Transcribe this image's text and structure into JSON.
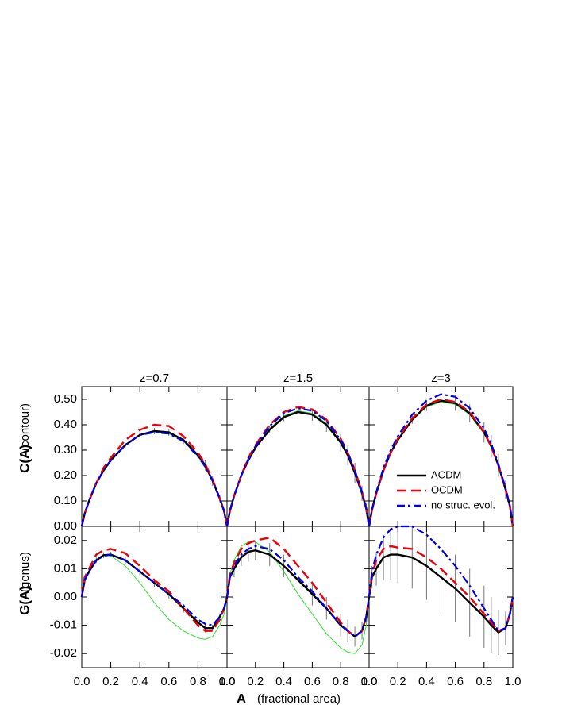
{
  "axis_labels": {
    "x": "A",
    "x_note": "(fractional area)",
    "y_top": "C(A)",
    "y_top_note": "(contour)",
    "y_bottom": "G(A)",
    "y_bottom_note": "(genus)"
  },
  "chart_data": [
    {
      "type": "line",
      "title": "z=0.7",
      "xlim": [
        0,
        1
      ],
      "ylim": [
        0,
        0.55
      ],
      "yticks": [
        {
          "value": 0,
          "label": "0.00"
        },
        {
          "value": 0.1,
          "label": "0.10"
        },
        {
          "value": 0.2,
          "label": "0.20"
        },
        {
          "value": 0.3,
          "label": "0.30"
        },
        {
          "value": 0.4,
          "label": "0.40"
        },
        {
          "value": 0.5,
          "label": "0.50"
        }
      ],
      "x": [
        0,
        0.02,
        0.05,
        0.1,
        0.15,
        0.2,
        0.3,
        0.4,
        0.5,
        0.6,
        0.7,
        0.8,
        0.85,
        0.9,
        0.95,
        0.98,
        1.0
      ],
      "series": [
        {
          "color": "#33dd33",
          "style": "thin",
          "values": [
            0,
            0.05,
            0.1,
            0.17,
            0.22,
            0.26,
            0.32,
            0.36,
            0.372,
            0.365,
            0.335,
            0.275,
            0.235,
            0.18,
            0.11,
            0.06,
            0
          ]
        },
        {
          "name": "ΛCDM",
          "color": "#000000",
          "style": "solid",
          "values": [
            0,
            0.05,
            0.1,
            0.17,
            0.22,
            0.26,
            0.32,
            0.36,
            0.375,
            0.37,
            0.34,
            0.28,
            0.24,
            0.18,
            0.11,
            0.06,
            0
          ],
          "errors": [
            0,
            0.003,
            0.004,
            0.005,
            0.006,
            0.007,
            0.008,
            0.01,
            0.012,
            0.014,
            0.016,
            0.02,
            0.02,
            0.02,
            0.015,
            0.01,
            0
          ]
        },
        {
          "name": "OCDM",
          "color": "#e8000b",
          "style": "dashed",
          "values": [
            0,
            0.05,
            0.1,
            0.17,
            0.23,
            0.27,
            0.34,
            0.38,
            0.4,
            0.395,
            0.355,
            0.29,
            0.245,
            0.185,
            0.11,
            0.06,
            0
          ]
        },
        {
          "name": "no struc. evol.",
          "color": "#0000e0",
          "style": "dashdot",
          "values": [
            0,
            0.05,
            0.1,
            0.17,
            0.22,
            0.26,
            0.32,
            0.36,
            0.37,
            0.365,
            0.335,
            0.275,
            0.235,
            0.18,
            0.11,
            0.06,
            0
          ]
        }
      ]
    },
    {
      "type": "line",
      "title": "z=1.5",
      "xlim": [
        0,
        1
      ],
      "ylim": [
        0,
        0.55
      ],
      "x": [
        0,
        0.02,
        0.05,
        0.1,
        0.15,
        0.2,
        0.3,
        0.4,
        0.5,
        0.6,
        0.7,
        0.8,
        0.85,
        0.9,
        0.95,
        0.98,
        1.0
      ],
      "series": [
        {
          "color": "#33dd33",
          "style": "thin",
          "values": [
            0,
            0.06,
            0.12,
            0.2,
            0.26,
            0.31,
            0.385,
            0.435,
            0.455,
            0.445,
            0.405,
            0.335,
            0.285,
            0.215,
            0.13,
            0.07,
            0
          ]
        },
        {
          "name": "ΛCDM",
          "color": "#000000",
          "style": "solid",
          "values": [
            0,
            0.06,
            0.12,
            0.2,
            0.26,
            0.31,
            0.38,
            0.43,
            0.45,
            0.44,
            0.4,
            0.33,
            0.28,
            0.21,
            0.13,
            0.07,
            0
          ],
          "errors": [
            0,
            0.004,
            0.006,
            0.008,
            0.01,
            0.012,
            0.014,
            0.016,
            0.02,
            0.024,
            0.028,
            0.035,
            0.04,
            0.04,
            0.03,
            0.02,
            0
          ]
        },
        {
          "name": "OCDM",
          "color": "#e8000b",
          "style": "dashed",
          "values": [
            0,
            0.06,
            0.12,
            0.2,
            0.27,
            0.32,
            0.4,
            0.45,
            0.47,
            0.46,
            0.42,
            0.345,
            0.29,
            0.22,
            0.135,
            0.07,
            0
          ]
        },
        {
          "name": "no struc. evol.",
          "color": "#0000e0",
          "style": "dashdot",
          "values": [
            0,
            0.06,
            0.12,
            0.2,
            0.265,
            0.315,
            0.395,
            0.445,
            0.465,
            0.455,
            0.415,
            0.34,
            0.29,
            0.22,
            0.135,
            0.07,
            0
          ]
        }
      ]
    },
    {
      "type": "line",
      "title": "z=3",
      "xlim": [
        0,
        1
      ],
      "ylim": [
        0,
        0.55
      ],
      "legend": "lower right",
      "x": [
        0,
        0.02,
        0.05,
        0.1,
        0.15,
        0.2,
        0.3,
        0.4,
        0.5,
        0.6,
        0.7,
        0.8,
        0.85,
        0.9,
        0.95,
        0.98,
        1.0
      ],
      "series": [
        {
          "color": "#33dd33",
          "style": "thin",
          "values": [
            0,
            0.065,
            0.13,
            0.22,
            0.29,
            0.34,
            0.42,
            0.47,
            0.49,
            0.48,
            0.44,
            0.365,
            0.31,
            0.235,
            0.145,
            0.08,
            0
          ]
        },
        {
          "name": "ΛCDM",
          "color": "#000000",
          "style": "solid",
          "values": [
            0,
            0.065,
            0.13,
            0.22,
            0.29,
            0.34,
            0.42,
            0.475,
            0.495,
            0.485,
            0.445,
            0.37,
            0.315,
            0.24,
            0.145,
            0.08,
            0
          ],
          "errors": [
            0,
            0.005,
            0.008,
            0.01,
            0.012,
            0.014,
            0.016,
            0.02,
            0.025,
            0.03,
            0.035,
            0.04,
            0.045,
            0.045,
            0.035,
            0.02,
            0
          ]
        },
        {
          "name": "OCDM",
          "color": "#e8000b",
          "style": "dashed",
          "values": [
            0,
            0.065,
            0.13,
            0.22,
            0.29,
            0.345,
            0.425,
            0.48,
            0.5,
            0.49,
            0.45,
            0.37,
            0.315,
            0.24,
            0.145,
            0.08,
            0
          ]
        },
        {
          "name": "no struc. evol.",
          "color": "#0000e0",
          "style": "dashdot",
          "values": [
            0,
            0.065,
            0.135,
            0.23,
            0.3,
            0.355,
            0.44,
            0.495,
            0.52,
            0.51,
            0.465,
            0.385,
            0.325,
            0.245,
            0.15,
            0.08,
            0
          ]
        }
      ]
    },
    {
      "type": "line",
      "xlim": [
        0,
        1
      ],
      "ylim": [
        -0.025,
        0.025
      ],
      "yticks": [
        -0.02,
        -0.01,
        {
          "value": 0,
          "label": "0.00"
        },
        0.01,
        0.02
      ],
      "xticks": [
        {
          "value": 0,
          "label": "0.0"
        },
        0.2,
        0.4,
        0.6,
        0.8,
        {
          "value": 1,
          "label": "1.0"
        }
      ],
      "x": [
        0,
        0.02,
        0.05,
        0.1,
        0.15,
        0.2,
        0.3,
        0.4,
        0.5,
        0.6,
        0.7,
        0.8,
        0.85,
        0.9,
        0.95,
        0.98,
        1.0
      ],
      "series": [
        {
          "color": "#33dd33",
          "style": "thin",
          "values": [
            0,
            0.006,
            0.009,
            0.013,
            0.015,
            0.0145,
            0.011,
            0.005,
            -0.002,
            -0.008,
            -0.012,
            -0.0145,
            -0.015,
            -0.014,
            -0.01,
            -0.006,
            0
          ]
        },
        {
          "name": "ΛCDM",
          "color": "#000000",
          "style": "solid",
          "values": [
            0,
            0.006,
            0.009,
            0.013,
            0.0148,
            0.015,
            0.013,
            0.009,
            0.005,
            0.001,
            -0.004,
            -0.009,
            -0.011,
            -0.011,
            -0.007,
            -0.004,
            0
          ],
          "errors": [
            0,
            0.0005,
            0.0008,
            0.001,
            0.001,
            0.001,
            0.0012,
            0.0015,
            0.0015,
            0.0015,
            0.0015,
            0.0015,
            0.0015,
            0.0012,
            0.001,
            0.0008,
            0
          ]
        },
        {
          "name": "OCDM",
          "color": "#e8000b",
          "style": "dashed",
          "values": [
            0,
            0.007,
            0.01,
            0.015,
            0.0165,
            0.017,
            0.0155,
            0.011,
            0.006,
            0.002,
            -0.004,
            -0.01,
            -0.012,
            -0.012,
            -0.008,
            -0.004,
            0
          ]
        },
        {
          "name": "no struc. evol.",
          "color": "#0000e0",
          "style": "dashdot",
          "values": [
            0,
            0.006,
            0.009,
            0.013,
            0.0145,
            0.015,
            0.013,
            0.009,
            0.005,
            0.001,
            -0.003,
            -0.008,
            -0.0095,
            -0.01,
            -0.007,
            -0.004,
            0
          ]
        }
      ]
    },
    {
      "type": "line",
      "xlim": [
        0,
        1
      ],
      "ylim": [
        -0.025,
        0.025
      ],
      "xticks": [
        {
          "value": 0,
          "label": "0.0"
        },
        0.2,
        0.4,
        0.6,
        0.8,
        {
          "value": 1,
          "label": "1.0"
        }
      ],
      "x": [
        0,
        0.02,
        0.05,
        0.1,
        0.15,
        0.2,
        0.3,
        0.4,
        0.5,
        0.6,
        0.7,
        0.8,
        0.85,
        0.9,
        0.95,
        0.98,
        1.0
      ],
      "series": [
        {
          "color": "#33dd33",
          "style": "thin",
          "values": [
            0,
            0.008,
            0.013,
            0.018,
            0.0195,
            0.0195,
            0.016,
            0.009,
            0.001,
            -0.006,
            -0.013,
            -0.018,
            -0.0195,
            -0.02,
            -0.017,
            -0.01,
            0
          ]
        },
        {
          "name": "ΛCDM",
          "color": "#000000",
          "style": "solid",
          "values": [
            0,
            0.007,
            0.01,
            0.014,
            0.016,
            0.0165,
            0.015,
            0.011,
            0.006,
            0.001,
            -0.004,
            -0.01,
            -0.012,
            -0.014,
            -0.012,
            -0.007,
            0
          ],
          "errors": [
            0,
            0.002,
            0.003,
            0.003,
            0.0035,
            0.0035,
            0.004,
            0.004,
            0.004,
            0.004,
            0.004,
            0.004,
            0.004,
            0.0035,
            0.003,
            0.002,
            0
          ]
        },
        {
          "name": "OCDM",
          "color": "#e8000b",
          "style": "dashed",
          "values": [
            0,
            0.008,
            0.012,
            0.017,
            0.019,
            0.02,
            0.021,
            0.017,
            0.011,
            0.005,
            -0.002,
            -0.009,
            -0.012,
            -0.014,
            -0.012,
            -0.007,
            0
          ]
        },
        {
          "name": "no struc. evol.",
          "color": "#0000e0",
          "style": "dashdot",
          "values": [
            0,
            0.007,
            0.011,
            0.015,
            0.017,
            0.018,
            0.017,
            0.013,
            0.007,
            0.002,
            -0.004,
            -0.01,
            -0.012,
            -0.014,
            -0.012,
            -0.007,
            0
          ]
        }
      ]
    },
    {
      "type": "line",
      "xlim": [
        0,
        1
      ],
      "ylim": [
        -0.025,
        0.025
      ],
      "xticks": [
        {
          "value": 0,
          "label": "0.0"
        },
        0.2,
        0.4,
        0.6,
        0.8,
        {
          "value": 1,
          "label": "1.0"
        }
      ],
      "x": [
        0,
        0.02,
        0.05,
        0.1,
        0.15,
        0.2,
        0.3,
        0.4,
        0.5,
        0.6,
        0.7,
        0.8,
        0.85,
        0.9,
        0.95,
        0.98,
        1.0
      ],
      "series": [
        {
          "name": "ΛCDM",
          "color": "#000000",
          "style": "solid",
          "values": [
            0,
            0.007,
            0.01,
            0.014,
            0.015,
            0.015,
            0.014,
            0.011,
            0.007,
            0.003,
            -0.002,
            -0.007,
            -0.01,
            -0.0125,
            -0.011,
            -0.006,
            0
          ],
          "errors": [
            0,
            0.004,
            0.006,
            0.008,
            0.009,
            0.01,
            0.011,
            0.012,
            0.012,
            0.012,
            0.012,
            0.011,
            0.01,
            0.008,
            0.006,
            0.003,
            0
          ]
        },
        {
          "name": "OCDM",
          "color": "#e8000b",
          "style": "dashed",
          "values": [
            0,
            0.008,
            0.013,
            0.017,
            0.018,
            0.0175,
            0.017,
            0.014,
            0.01,
            0.005,
            0,
            -0.006,
            -0.009,
            -0.012,
            -0.011,
            -0.006,
            0
          ]
        },
        {
          "name": "no struc. evol.",
          "color": "#0000e0",
          "style": "dashdot",
          "values": [
            0,
            0.009,
            0.015,
            0.021,
            0.024,
            0.025,
            0.025,
            0.022,
            0.017,
            0.011,
            0.004,
            -0.004,
            -0.008,
            -0.012,
            -0.011,
            -0.006,
            0
          ]
        }
      ]
    }
  ]
}
